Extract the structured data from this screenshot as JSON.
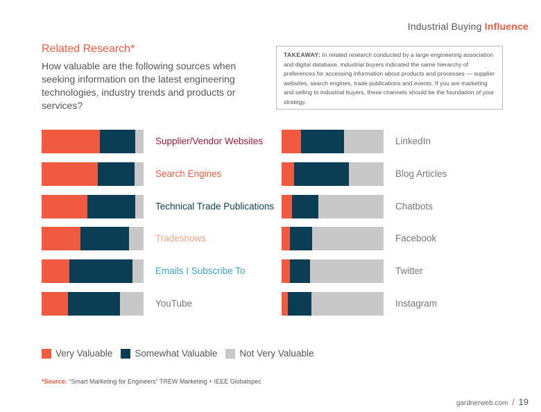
{
  "header": {
    "title_plain": "Industrial Buying",
    "title_accent": "Influence"
  },
  "section_title": "Related Research*",
  "question": "How valuable are the following sources when seeking information on the latest engineering technologies, industry trends and products or services?",
  "takeaway": {
    "label": "TAKEAWAY:",
    "text": "In related research conducted by a large engineering association and digital database, industrial buyers indicated the same hierarchy of preferences for accessing information about products and processes — supplier websites, search engines, trade publications and events. If you are marketing and selling to industrial buyers, these channels should be the foundation of your strategy."
  },
  "colors": {
    "very": "#f05a40",
    "somewhat": "#0b3d54",
    "not": "#c8c8c8"
  },
  "chart_data": {
    "type": "bar",
    "stacked": true,
    "orientation": "horizontal",
    "series_names": [
      "Very Valuable",
      "Somewhat Valuable",
      "Not Very Valuable"
    ],
    "left_column": [
      {
        "name": "Supplier/Vendor Websites",
        "color": "#a3183a",
        "values": [
          57,
          35,
          8
        ]
      },
      {
        "name": "Search Engines",
        "color": "#f05a40",
        "values": [
          55,
          36,
          9
        ]
      },
      {
        "name": "Technical Trade Publications",
        "color": "#0b3d54",
        "values": [
          45,
          47,
          8
        ]
      },
      {
        "name": "Tradeshows",
        "color": "#f4a48a",
        "values": [
          38,
          48,
          14
        ]
      },
      {
        "name": "Emails I Subscribe To",
        "color": "#3aa3d0",
        "values": [
          27,
          62,
          11
        ]
      },
      {
        "name": "YouTube",
        "color": "#777777",
        "values": [
          26,
          51,
          23
        ]
      }
    ],
    "right_column": [
      {
        "name": "LinkedIn",
        "color": "#777777",
        "values": [
          19,
          42,
          39
        ]
      },
      {
        "name": "Blog Articles",
        "color": "#777777",
        "values": [
          12,
          54,
          34
        ]
      },
      {
        "name": "Chatbots",
        "color": "#777777",
        "values": [
          10,
          26,
          64
        ]
      },
      {
        "name": "Facebook",
        "color": "#777777",
        "values": [
          8,
          22,
          70
        ]
      },
      {
        "name": "Twitter",
        "color": "#777777",
        "values": [
          8,
          20,
          72
        ]
      },
      {
        "name": "Instagram",
        "color": "#777777",
        "values": [
          6,
          23,
          71
        ]
      }
    ]
  },
  "legend": [
    "Very Valuable",
    "Somewhat Valuable",
    "Not Very Valuable"
  ],
  "source": {
    "label": "*Source:",
    "text": "“Smart Marketing for Engineers” TREW Marketing + IEEE Globalspec"
  },
  "footer": {
    "site": "gardnerweb.com",
    "slash": "/",
    "page": "19"
  }
}
